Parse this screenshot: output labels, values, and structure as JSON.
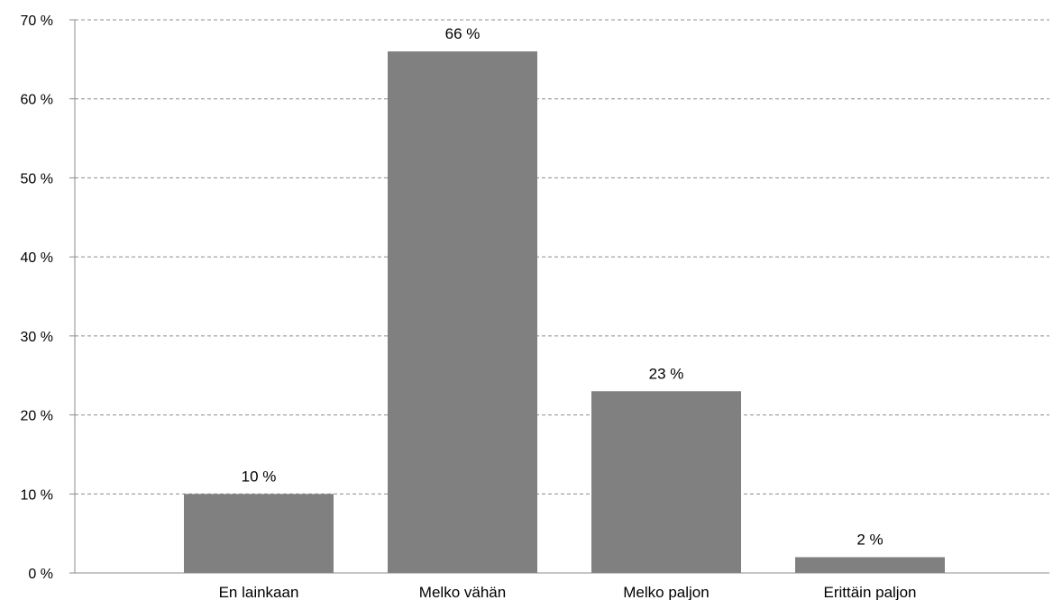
{
  "chart_data": {
    "type": "bar",
    "categories": [
      "En lainkaan",
      "Melko vähän",
      "Melko paljon",
      "Erittäin paljon"
    ],
    "values": [
      10,
      66,
      23,
      2
    ],
    "data_labels": [
      "10 %",
      "66 %",
      "23 %",
      "2 %"
    ],
    "ylim": [
      0,
      70
    ],
    "y_ticks": [
      0,
      10,
      20,
      30,
      40,
      50,
      60,
      70
    ],
    "y_tick_labels": [
      "0 %",
      "10 %",
      "20 %",
      "30 %",
      "40 %",
      "50 %",
      "60 %",
      "70 %"
    ],
    "grid": true,
    "grid_style": "dashed",
    "legend": "none",
    "bar_color": "#808080",
    "grid_color": "#8c8c8c",
    "axis_color": "#8c8c8c"
  }
}
